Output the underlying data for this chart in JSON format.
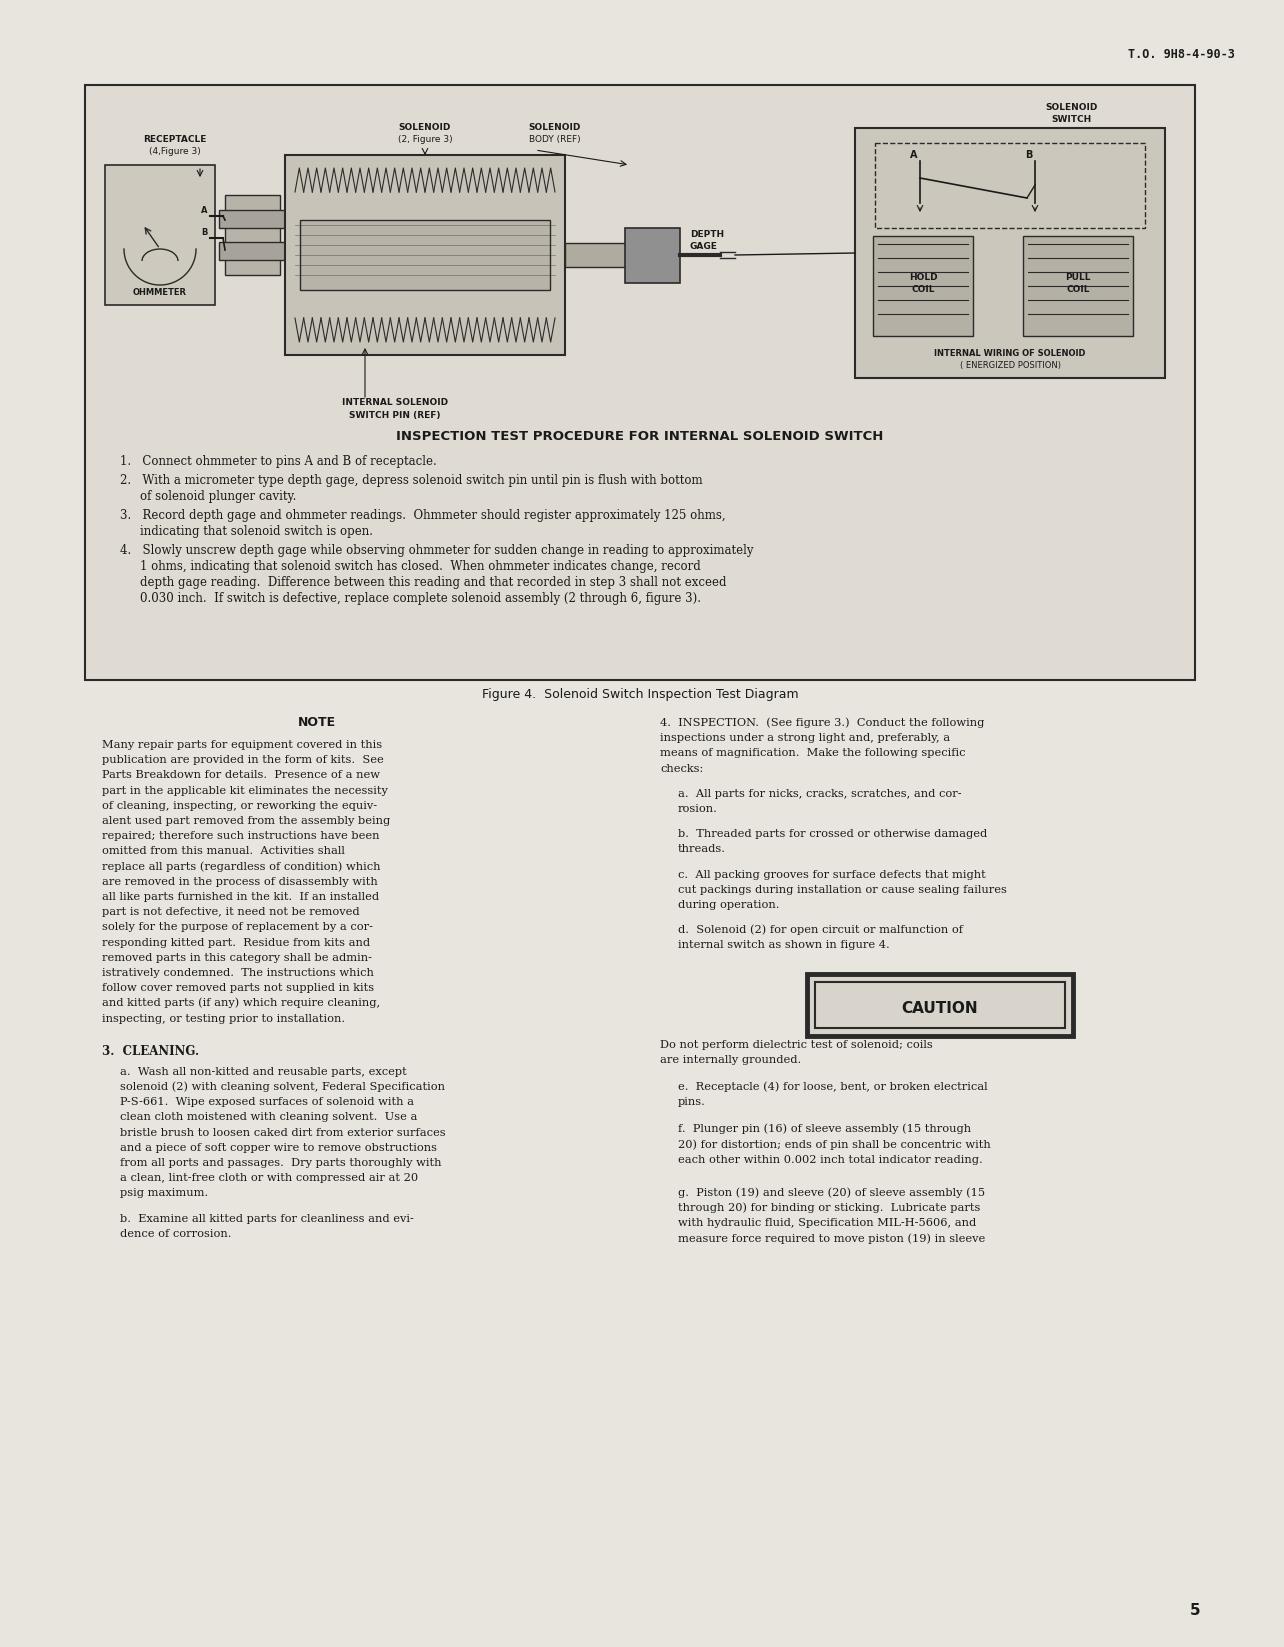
{
  "page_bg": "#e8e5de",
  "text_color": "#1a1a1a",
  "top_right_text": "T.O. 9H8-4-90-3",
  "page_number": "5",
  "figure_caption": "Figure 4.  Solenoid Switch Inspection Test Diagram",
  "diagram_title": "INSPECTION TEST PROCEDURE FOR INTERNAL SOLENOID SWITCH",
  "diagram_items": [
    "1.   Connect ohmmeter to pins A and B of receptacle.",
    "2.   With a micrometer type depth gage, depress solenoid switch pin until pin is flush with bottom\n      of solenoid plunger cavity.",
    "3.   Record depth gage and ohmmeter readings.  Ohmmeter should register approximately 125 ohms,\n      indicating that solenoid switch is open.",
    "4.   Slowly unscrew depth gage while observing ohmmeter for sudden change in reading to approximately\n      1 ohms, indicating that solenoid switch has closed.  When ohmmeter indicates change, record\n      depth gage reading.  Difference between this reading and that recorded in step 3 shall not exceed\n      0.030 inch.  If switch is defective, replace complete solenoid assembly (2 through 6, figure 3)."
  ],
  "note_title": "NOTE",
  "note_lines": [
    "Many repair parts for equipment covered in this",
    "publication are provided in the form of kits.  See",
    "Parts Breakdown for details.  Presence of a new",
    "part in the applicable kit eliminates the necessity",
    "of cleaning, inspecting, or reworking the equiv-",
    "alent used part removed from the assembly being",
    "repaired; therefore such instructions have been",
    "omitted from this manual.  Activities shall",
    "replace all parts (regardless of condition) which",
    "are removed in the process of disassembly with",
    "all like parts furnished in the kit.  If an installed",
    "part is not defective, it need not be removed",
    "solely for the purpose of replacement by a cor-",
    "responding kitted part.  Residue from kits and",
    "removed parts in this category shall be admin-",
    "istratively condemned.  The instructions which",
    "follow cover removed parts not supplied in kits",
    "and kitted parts (if any) which require cleaning,",
    "inspecting, or testing prior to installation."
  ],
  "section3_title": "3.  CLEANING.",
  "sec3a_lines": [
    "a.  Wash all non-kitted and reusable parts, except",
    "solenoid (2) with cleaning solvent, Federal Specification",
    "P-S-661.  Wipe exposed surfaces of solenoid with a",
    "clean cloth moistened with cleaning solvent.  Use a",
    "bristle brush to loosen caked dirt from exterior surfaces",
    "and a piece of soft copper wire to remove obstructions",
    "from all ports and passages.  Dry parts thoroughly with",
    "a clean, lint-free cloth or with compressed air at 20",
    "psig maximum."
  ],
  "sec3b_lines": [
    "b.  Examine all kitted parts for cleanliness and evi-",
    "dence of corrosion."
  ],
  "sec4_title_lines": [
    "4.  INSPECTION.  (See figure 3.)  Conduct the following",
    "inspections under a strong light and, preferably, a",
    "means of magnification.  Make the following specific",
    "checks:"
  ],
  "sec4a_lines": [
    "a.  All parts for nicks, cracks, scratches, and cor-",
    "rosion."
  ],
  "sec4b_lines": [
    "b.  Threaded parts for crossed or otherwise damaged",
    "threads."
  ],
  "sec4c_lines": [
    "c.  All packing grooves for surface defects that might",
    "cut packings during installation or cause sealing failures",
    "during operation."
  ],
  "sec4d_lines": [
    "d.  Solenoid (2) for open circuit or malfunction of",
    "internal switch as shown in figure 4."
  ],
  "caution_label": "CAUTION",
  "caution_text_lines": [
    "Do not perform dielectric test of solenoid; coils",
    "are internally grounded."
  ],
  "sec4e_lines": [
    "e.  Receptacle (4) for loose, bent, or broken electrical",
    "pins."
  ],
  "sec4f_lines": [
    "f.  Plunger pin (16) of sleeve assembly (15 through",
    "20) for distortion; ends of pin shall be concentric with",
    "each other within 0.002 inch total indicator reading."
  ],
  "sec4g_lines": [
    "g.  Piston (19) and sleeve (20) of sleeve assembly (15",
    "through 20) for binding or sticking.  Lubricate parts",
    "with hydraulic fluid, Specification MIL-H-5606, and",
    "measure force required to move piston (19) in sleeve"
  ]
}
